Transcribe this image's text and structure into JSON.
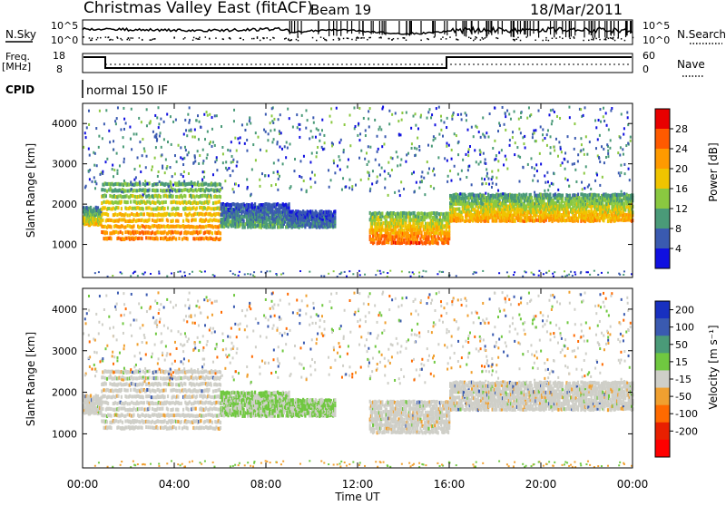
{
  "header": {
    "station": "Christmas Valley East (fitACF)",
    "beam": "Beam 19",
    "date": "18/Mar/2011"
  },
  "strip": {
    "nsky_label": "N.Sky",
    "nsearch_label": "N.Search",
    "noise_ticks": [
      "10^5",
      "10^0"
    ],
    "freq_label_1": "Freq.",
    "freq_label_2": "[MHz]",
    "freq_ticks": [
      "18",
      "8"
    ],
    "nave_label": "Nave",
    "nave_ticks": [
      "60",
      "0"
    ],
    "cpid_label": "CPID",
    "cpid_value": "normal 150 IF"
  },
  "chart_data": [
    {
      "type": "heatmap",
      "ylabel": "Slant Range [km]",
      "colorbar_label": "Power [dB]",
      "colorbar_ticks": [
        "28",
        "24",
        "20",
        "16",
        "12",
        "8",
        "4"
      ],
      "colorbar_colors": [
        "#e80000",
        "#ff5a00",
        "#ff9a00",
        "#f0c400",
        "#8ac840",
        "#4a9a78",
        "#3a5ab0",
        "#1010e0"
      ],
      "yticks": [
        1000,
        2000,
        3000,
        4000
      ],
      "ylim": [
        180,
        4500
      ],
      "bands": [
        {
          "start": 0.0,
          "end": 0.8,
          "lower": 1450,
          "upper": 1900,
          "power": 18
        },
        {
          "start": 0.8,
          "end": 6.0,
          "lower": 1100,
          "upper": 2600,
          "power": 22
        },
        {
          "start": 6.0,
          "end": 9.0,
          "lower": 1400,
          "upper": 2000,
          "power": 10
        },
        {
          "start": 9.0,
          "end": 11.0,
          "lower": 1400,
          "upper": 1800,
          "power": 8
        },
        {
          "start": 12.5,
          "end": 16.0,
          "lower": 1000,
          "upper": 1800,
          "power": 24
        },
        {
          "start": 16.0,
          "end": 24.0,
          "lower": 1550,
          "upper": 2250,
          "power": 20
        }
      ]
    },
    {
      "type": "heatmap",
      "ylabel": "Slant Range [km]",
      "xlabel": "Time UT",
      "colorbar_label": "Velocity [m s⁻¹]",
      "colorbar_ticks": [
        "200",
        "100",
        "50",
        "15",
        "-15",
        "-50",
        "-100",
        "-200"
      ],
      "colorbar_colors": [
        "#1830c0",
        "#3a5ab0",
        "#4a9a78",
        "#70c840",
        "#cfcfc8",
        "#f0a030",
        "#ff6a00",
        "#e82000",
        "#ff0000"
      ],
      "yticks": [
        1000,
        2000,
        3000,
        4000
      ],
      "ylim": [
        180,
        4500
      ],
      "xticks": [
        "00:00",
        "04:00",
        "08:00",
        "12:00",
        "16:00",
        "20:00",
        "00:00"
      ],
      "xlim": [
        0,
        24
      ]
    }
  ]
}
